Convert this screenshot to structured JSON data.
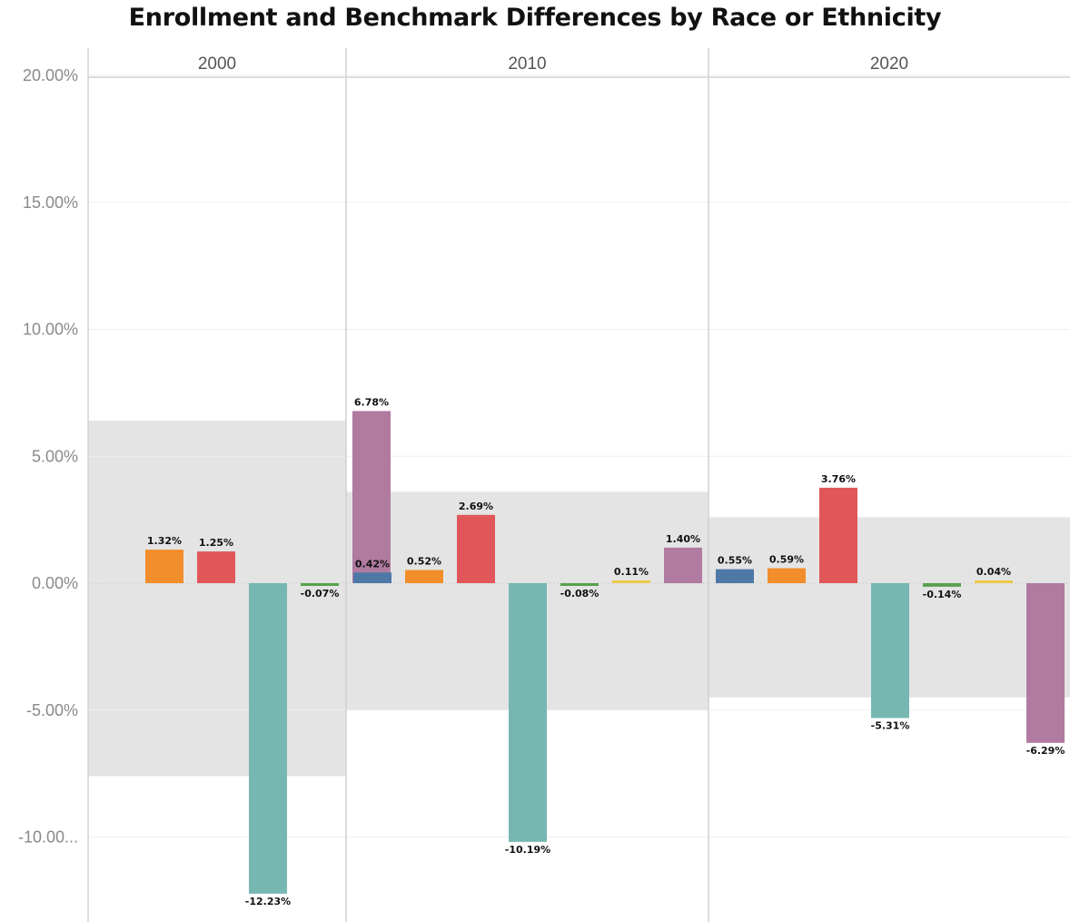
{
  "chart_data": {
    "type": "bar",
    "title": "Enrollment and Benchmark Differences by Race or Ethnicity",
    "ylim": [
      -12.5,
      20.5
    ],
    "y_ticks": [
      20,
      15,
      10,
      5,
      0,
      -5,
      -10
    ],
    "y_tick_labels": [
      "20.00%",
      "15.00%",
      "10.00%",
      "5.00%",
      "0.00%",
      "-5.00%",
      "-10.00..."
    ],
    "grid": true,
    "panels": [
      {
        "header": "2000",
        "band": [
          -7.6,
          6.4
        ],
        "bars": [
          {
            "slot": 1,
            "value": 1.32,
            "label": "1.32%",
            "color": "#f28e2b"
          },
          {
            "slot": 2,
            "value": 1.25,
            "label": "1.25%",
            "color": "#e15759"
          },
          {
            "slot": 3,
            "value": -12.23,
            "label": "-12.23%",
            "color": "#76b7b2"
          },
          {
            "slot": 4,
            "value": -0.07,
            "label": "-0.07%",
            "color": "#59a14f"
          },
          {
            "slot": 5,
            "value": 6.78,
            "label": "6.78%",
            "color": "#b07aa1"
          }
        ]
      },
      {
        "header": "2010",
        "band": [
          -5.0,
          3.6
        ],
        "bars": [
          {
            "slot": 0,
            "value": 0.42,
            "label": "0.42%",
            "color": "#4e79a7"
          },
          {
            "slot": 1,
            "value": 0.52,
            "label": "0.52%",
            "color": "#f28e2b"
          },
          {
            "slot": 2,
            "value": 2.69,
            "label": "2.69%",
            "color": "#e15759"
          },
          {
            "slot": 3,
            "value": -10.19,
            "label": "-10.19%",
            "color": "#76b7b2"
          },
          {
            "slot": 4,
            "value": -0.08,
            "label": "-0.08%",
            "color": "#59a14f"
          },
          {
            "slot": 5,
            "value": 0.11,
            "label": "0.11%",
            "color": "#edc948"
          },
          {
            "slot": 6,
            "value": 1.4,
            "label": "1.40%",
            "color": "#b07aa1"
          }
        ]
      },
      {
        "header": "2020",
        "band": [
          -4.5,
          2.6
        ],
        "bars": [
          {
            "slot": 0,
            "value": 0.55,
            "label": "0.55%",
            "color": "#4e79a7"
          },
          {
            "slot": 1,
            "value": 0.59,
            "label": "0.59%",
            "color": "#f28e2b"
          },
          {
            "slot": 2,
            "value": 3.76,
            "label": "3.76%",
            "color": "#e15759"
          },
          {
            "slot": 3,
            "value": -5.31,
            "label": "-5.31%",
            "color": "#76b7b2"
          },
          {
            "slot": 4,
            "value": -0.14,
            "label": "-0.14%",
            "color": "#59a14f"
          },
          {
            "slot": 5,
            "value": 0.04,
            "label": "0.04%",
            "color": "#edc948"
          },
          {
            "slot": 6,
            "value": -6.29,
            "label": "-6.29%",
            "color": "#b07aa1"
          }
        ]
      }
    ]
  }
}
